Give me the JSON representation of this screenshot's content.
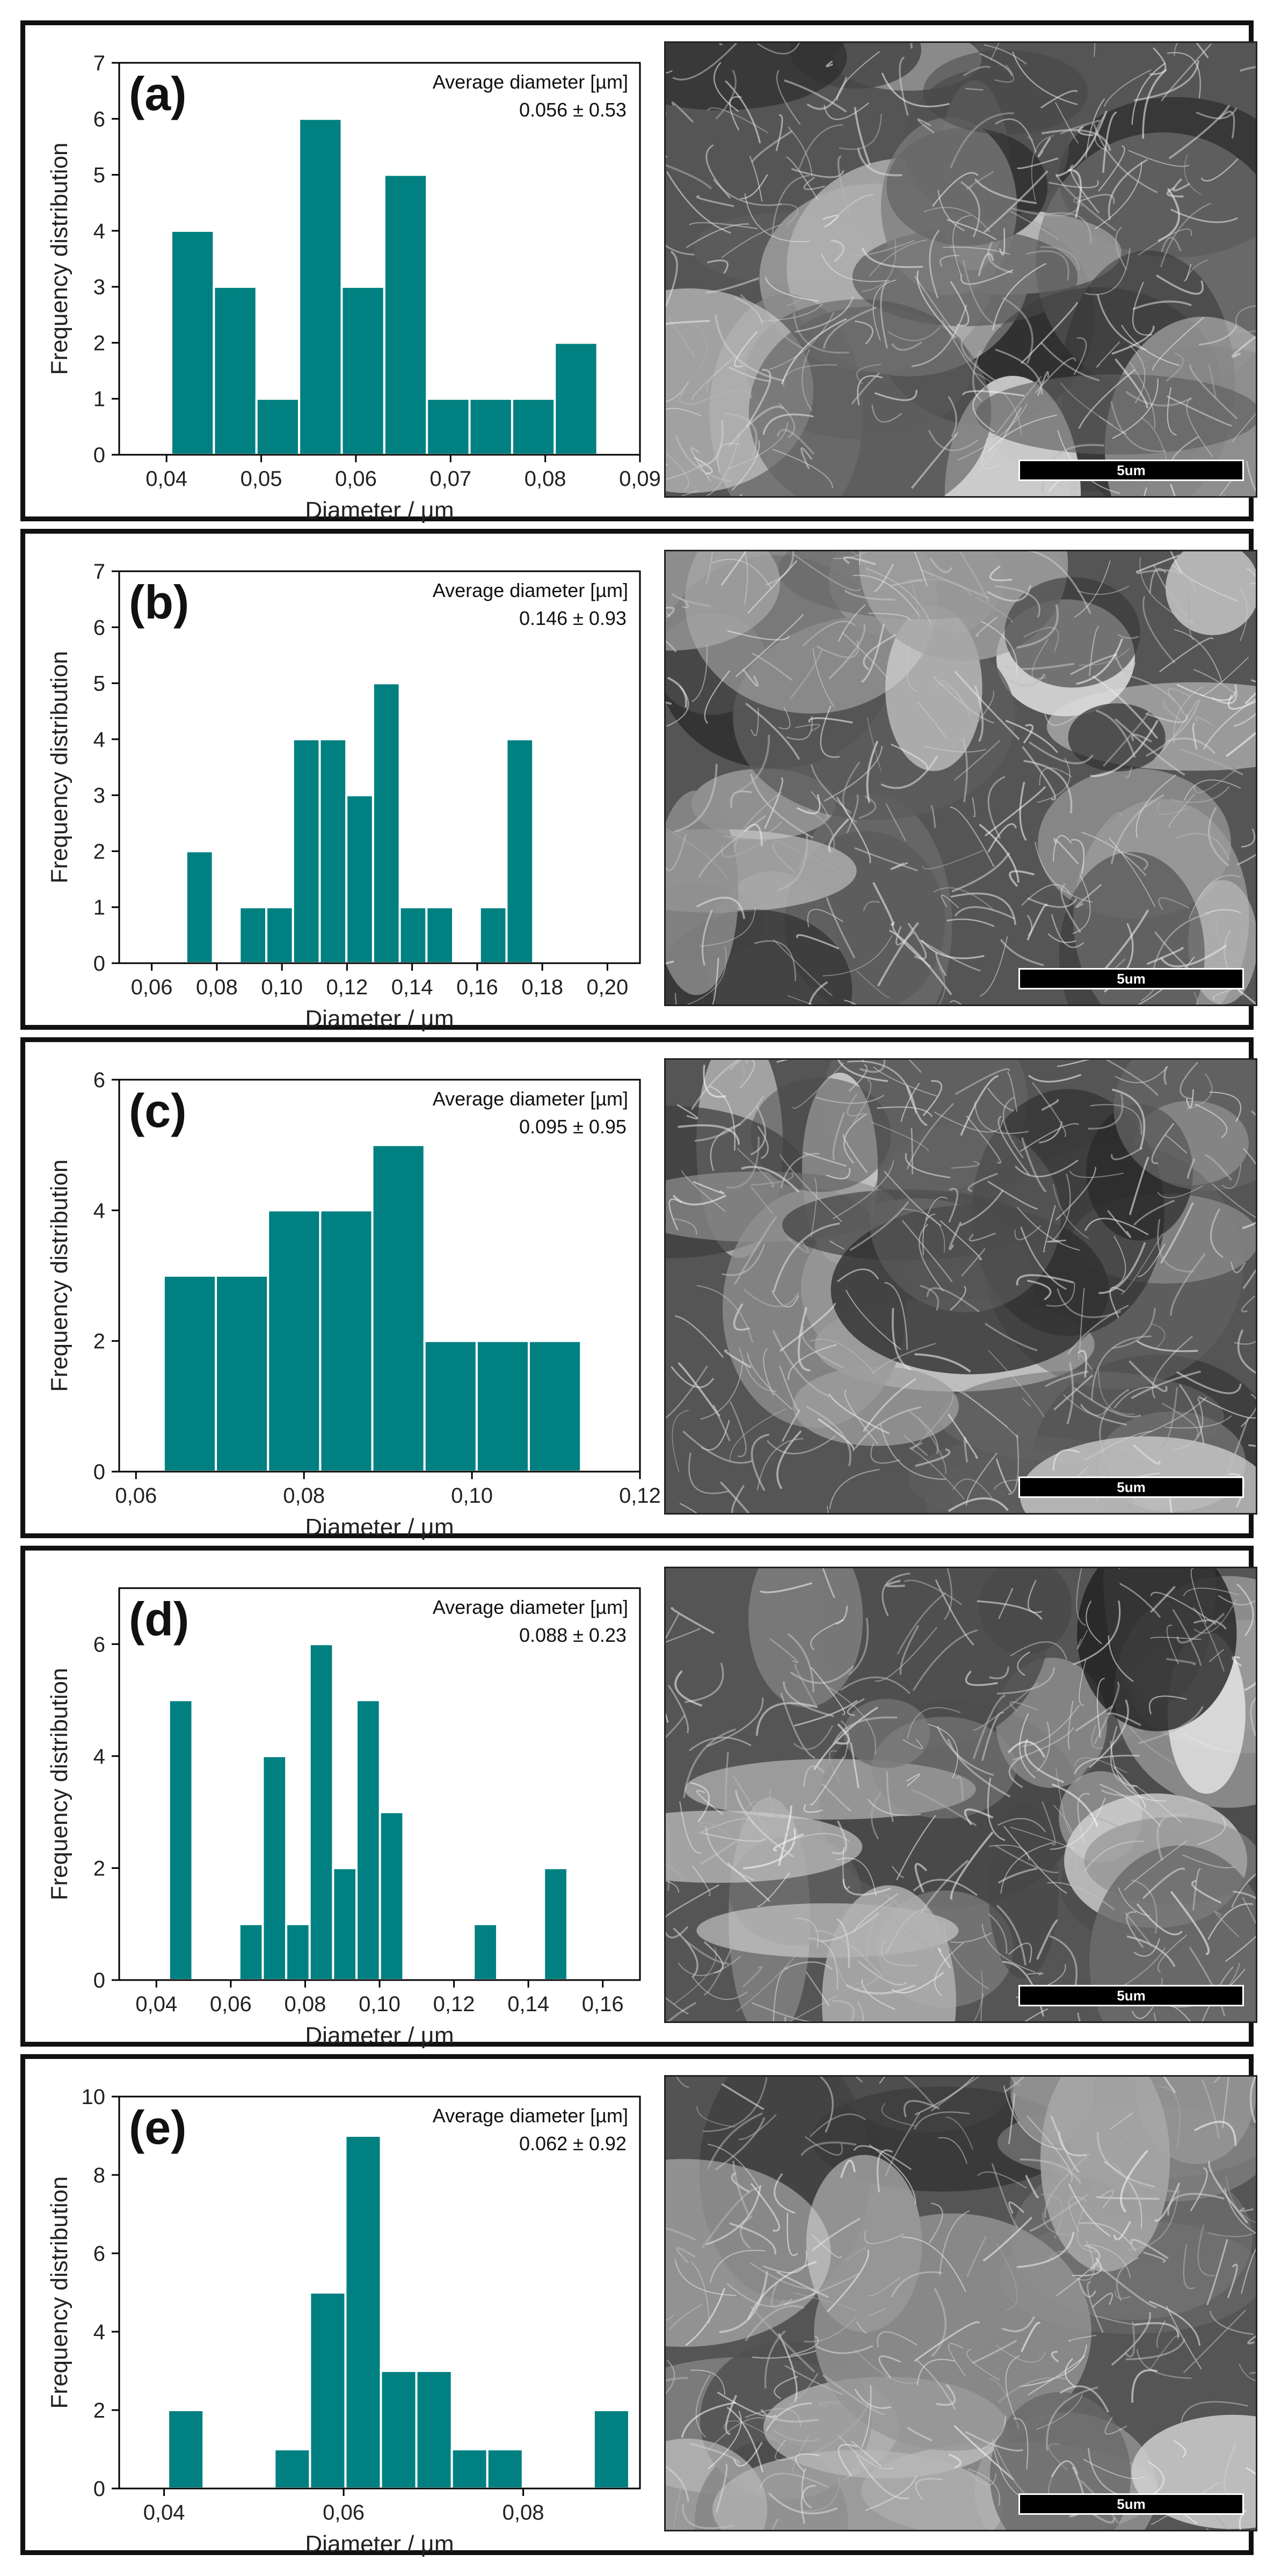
{
  "colors": {
    "bar": "#008080",
    "bar_edge": "#ffffff",
    "axis": "#000000"
  },
  "chart_data": [
    {
      "type": "bar",
      "panel_label": "(a)",
      "annotation_title": "Average diameter [µm]",
      "annotation_value": "0.056 ± 0.53",
      "xlabel": "Diameter / µm",
      "ylabel": "Frequency distribution",
      "xlim": [
        0.035,
        0.09
      ],
      "ylim": [
        0,
        7
      ],
      "xticks": [
        0.04,
        0.05,
        0.06,
        0.07,
        0.08,
        0.09
      ],
      "xtick_labels": [
        "0,04",
        "0,05",
        "0,06",
        "0,07",
        "0,08",
        "0,09"
      ],
      "yticks": [
        0,
        1,
        2,
        3,
        4,
        5,
        6,
        7
      ],
      "ytick_labels": [
        "0",
        "1",
        "2",
        "3",
        "4",
        "5",
        "6",
        "7"
      ],
      "bin_width": 0.0045,
      "bin_starts": [
        0.0405,
        0.045,
        0.0495,
        0.054,
        0.0585,
        0.063,
        0.0675,
        0.072,
        0.0765,
        0.081
      ],
      "values": [
        4,
        3,
        1,
        6,
        3,
        5,
        1,
        1,
        1,
        2
      ],
      "scale_bar": "5um"
    },
    {
      "type": "bar",
      "panel_label": "(b)",
      "annotation_title": "Average diameter [µm]",
      "annotation_value": "0.146 ± 0.93",
      "xlabel": "Diameter / µm",
      "ylabel": "Frequency distribution",
      "xlim": [
        0.05,
        0.21
      ],
      "ylim": [
        0,
        7
      ],
      "xticks": [
        0.06,
        0.08,
        0.1,
        0.12,
        0.14,
        0.16,
        0.18,
        0.2
      ],
      "xtick_labels": [
        "0,06",
        "0,08",
        "0,10",
        "0,12",
        "0,14",
        "0,16",
        "0,18",
        "0,20"
      ],
      "yticks": [
        0,
        1,
        2,
        3,
        4,
        5,
        6,
        7
      ],
      "ytick_labels": [
        "0",
        "1",
        "2",
        "3",
        "4",
        "5",
        "6",
        "7"
      ],
      "bin_width": 0.0082,
      "bin_starts": [
        0.0706,
        0.0788,
        0.087,
        0.0952,
        0.1034,
        0.1116,
        0.1198,
        0.128,
        0.1362,
        0.1444,
        0.1526,
        0.1608,
        0.169,
        0.1772,
        0.1854
      ],
      "values": [
        2,
        0,
        1,
        1,
        4,
        4,
        3,
        5,
        1,
        1,
        0,
        1,
        4,
        0,
        0
      ],
      "scale_bar": "5um"
    },
    {
      "type": "bar",
      "panel_label": "(c)",
      "annotation_title": "Average diameter [µm]",
      "annotation_value": "0.095 ± 0.95",
      "xlabel": "Diameter / µm",
      "ylabel": "Frequency distribution",
      "xlim": [
        0.058,
        0.12
      ],
      "ylim": [
        0,
        6
      ],
      "xticks": [
        0.06,
        0.08,
        0.1,
        0.12
      ],
      "xtick_labels": [
        "0,06",
        "0,08",
        "0,10",
        "0,12"
      ],
      "yticks": [
        0,
        2,
        4,
        6
      ],
      "ytick_labels": [
        "0",
        "2",
        "4",
        "6"
      ],
      "bin_width": 0.00621,
      "bin_starts": [
        0.0633,
        0.06951,
        0.07572,
        0.08193,
        0.08814,
        0.09435,
        0.10056,
        0.10677,
        0.11298
      ],
      "values": [
        3,
        3,
        4,
        4,
        5,
        2,
        2,
        2,
        0
      ],
      "scale_bar": "5um"
    },
    {
      "type": "bar",
      "panel_label": "(d)",
      "annotation_title": "Average diameter [µm]",
      "annotation_value": "0.088 ± 0.23",
      "xlabel": "Diameter / µm",
      "ylabel": "Frequency distribution",
      "xlim": [
        0.03,
        0.17
      ],
      "ylim": [
        0,
        7
      ],
      "xticks": [
        0.04,
        0.06,
        0.08,
        0.1,
        0.12,
        0.14,
        0.16
      ],
      "xtick_labels": [
        "0,04",
        "0,06",
        "0,08",
        "0,10",
        "0,12",
        "0,14",
        "0,16"
      ],
      "yticks": [
        0,
        2,
        4,
        6
      ],
      "ytick_labels": [
        "0",
        "2",
        "4",
        "6"
      ],
      "bin_width": 0.0063,
      "bin_starts": [
        0.0434,
        0.0497,
        0.056,
        0.0623,
        0.0686,
        0.0749,
        0.0812,
        0.0875,
        0.0938,
        0.1001,
        0.1064,
        0.1127,
        0.119,
        0.1253,
        0.1316,
        0.1379,
        0.1442,
        0.1505,
        0.1568
      ],
      "values": [
        5,
        0,
        0,
        1,
        4,
        1,
        6,
        2,
        5,
        3,
        0,
        0,
        0,
        1,
        0,
        0,
        2,
        0,
        0
      ],
      "scale_bar": "5um"
    },
    {
      "type": "bar",
      "panel_label": "(e)",
      "annotation_title": "Average diameter [µm]",
      "annotation_value": "0.062 ± 0.92",
      "xlabel": "Diameter / µm",
      "ylabel": "Frequency distribution",
      "xlim": [
        0.035,
        0.093
      ],
      "ylim": [
        0,
        10
      ],
      "xticks": [
        0.04,
        0.06,
        0.08
      ],
      "xtick_labels": [
        "0,04",
        "0,06",
        "0,08"
      ],
      "yticks": [
        0,
        2,
        4,
        6,
        8,
        10
      ],
      "ytick_labels": [
        "0",
        "2",
        "4",
        "6",
        "8",
        "10"
      ],
      "bin_width": 0.00395,
      "bin_starts": [
        0.04045,
        0.0444,
        0.04835,
        0.0523,
        0.05625,
        0.0602,
        0.06415,
        0.0681,
        0.07205,
        0.076,
        0.07995,
        0.0839,
        0.08785
      ],
      "values": [
        2,
        0,
        0,
        1,
        5,
        9,
        3,
        3,
        1,
        1,
        0,
        0,
        2
      ],
      "scale_bar": "5um"
    }
  ]
}
